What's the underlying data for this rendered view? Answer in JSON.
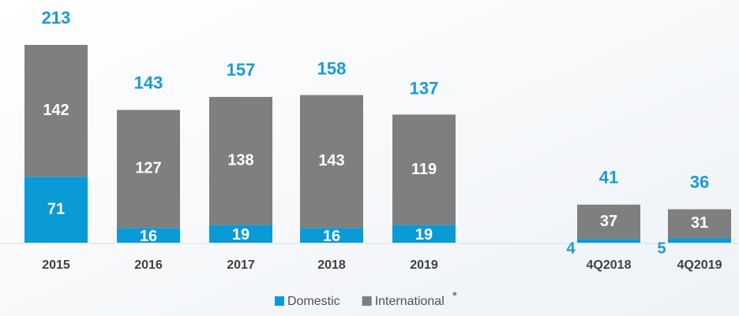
{
  "chart_data": {
    "type": "stacked_bar",
    "categories": [
      "2015",
      "2016",
      "2017",
      "2018",
      "2019",
      "4Q2018",
      "4Q2019"
    ],
    "series": [
      {
        "name": "Domestic",
        "color": "#0a9ad6",
        "values": [
          71,
          16,
          19,
          16,
          19,
          4,
          5
        ]
      },
      {
        "name": "International",
        "color": "#7f7f7f",
        "values": [
          142,
          127,
          138,
          143,
          119,
          37,
          31
        ]
      }
    ],
    "totals": [
      213,
      143,
      157,
      158,
      137,
      41,
      36
    ],
    "legend_note": "*",
    "legend": "bottom"
  }
}
